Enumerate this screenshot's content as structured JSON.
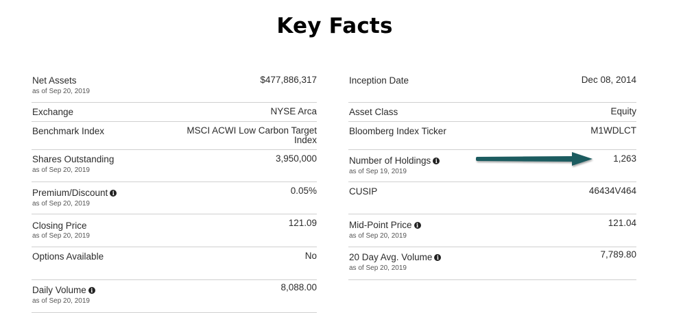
{
  "page": {
    "title": "Key Facts"
  },
  "left": [
    {
      "label": "Net Assets",
      "sub": "as of Sep 20, 2019",
      "value": "$477,886,317",
      "info": false
    },
    {
      "label": "Exchange",
      "sub": "",
      "value": "NYSE Arca",
      "info": false
    },
    {
      "label": "Benchmark Index",
      "sub": "",
      "value": "MSCI ACWI Low Carbon Target",
      "value2": "Index",
      "info": false
    },
    {
      "label": "Shares Outstanding",
      "sub": "as of Sep 20, 2019",
      "value": "3,950,000",
      "info": false
    },
    {
      "label": "Premium/Discount",
      "sub": "as of Sep 20, 2019",
      "value": "0.05%",
      "info": true
    },
    {
      "label": "Closing Price",
      "sub": "as of Sep 20, 2019",
      "value": "121.09",
      "info": false
    },
    {
      "label": "Options Available",
      "sub": "",
      "value": "No",
      "info": false
    },
    {
      "label": "Daily Volume",
      "sub": "as of Sep 20, 2019",
      "value": "8,088.00",
      "info": true
    }
  ],
  "right": [
    {
      "label": "Inception Date",
      "sub": "",
      "value": "Dec 08, 2014",
      "info": false
    },
    {
      "label": "Asset Class",
      "sub": "",
      "value": "Equity",
      "info": false
    },
    {
      "label": "Bloomberg Index Ticker",
      "sub": "",
      "value": "M1WDLCT",
      "info": false
    },
    {
      "label": "Number of Holdings",
      "sub": "as of Sep 19, 2019",
      "value": "1,263",
      "info": true
    },
    {
      "label": "CUSIP",
      "sub": "",
      "value": "46434V464",
      "info": false
    },
    {
      "label": "Mid-Point Price",
      "sub": "as of Sep 20, 2019",
      "value": "121.04",
      "info": true
    },
    {
      "label": "20 Day Avg. Volume",
      "sub": "as of Sep 20, 2019",
      "value": "7,789.80",
      "info": true
    }
  ],
  "info_glyph": "i",
  "arrow": {
    "color": "#1f5c61",
    "icon": "arrow-right-icon"
  }
}
